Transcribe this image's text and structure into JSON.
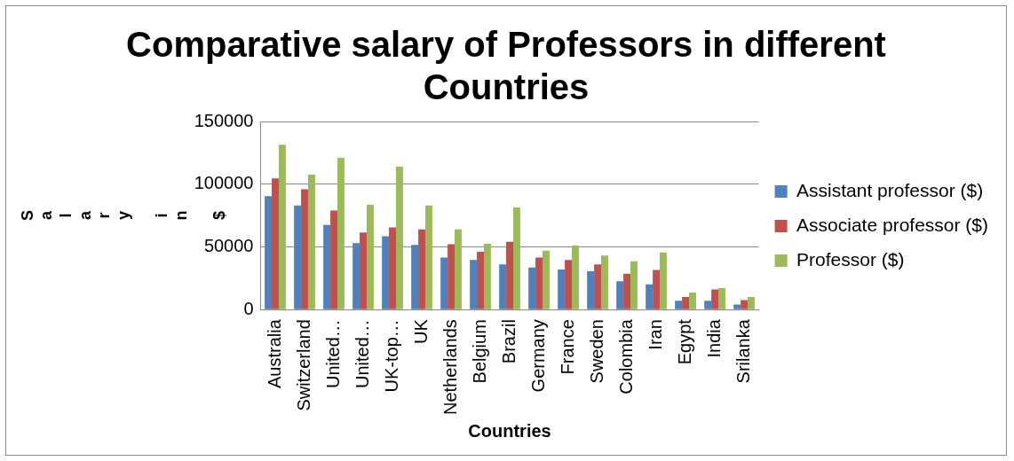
{
  "chart_data": {
    "type": "bar",
    "title": "Comparative salary of Professors in different Countries",
    "xlabel": "Countries",
    "ylabel": "Salary in $",
    "categories": [
      "Australia",
      "Switzerland",
      "United…",
      "United…",
      "UK-top…",
      "UK",
      "Netherlands",
      "Belgium",
      "Brazil",
      "Germany",
      "France",
      "Sweden",
      "Colombia",
      "Iran",
      "Egypt",
      "India",
      "Srilanka"
    ],
    "series": [
      {
        "name": "Assistant professor ($)",
        "color": "#4f81bd",
        "values": [
          90500,
          83000,
          67500,
          53000,
          58500,
          51500,
          41500,
          39500,
          36000,
          33500,
          32000,
          30500,
          22500,
          20000,
          7000,
          7000,
          4000
        ]
      },
      {
        "name": "Associate professor ($)",
        "color": "#c0504d",
        "values": [
          104500,
          96000,
          79000,
          61500,
          65500,
          64000,
          52000,
          46000,
          54000,
          41500,
          39500,
          36000,
          28500,
          31500,
          10000,
          16000,
          7500
        ]
      },
      {
        "name": "Professor ($)",
        "color": "#9bbb59",
        "values": [
          131500,
          107500,
          121000,
          83500,
          114000,
          83000,
          64000,
          52500,
          81500,
          47000,
          51000,
          43000,
          38500,
          45500,
          13500,
          17000,
          10000
        ]
      }
    ],
    "ylim": [
      0,
      150000
    ],
    "yticks": [
      0,
      50000,
      100000,
      150000
    ],
    "grid": "y",
    "legend": "right"
  }
}
